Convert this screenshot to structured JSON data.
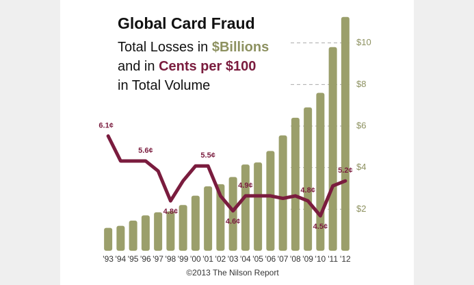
{
  "chart_data": {
    "type": "bar",
    "title": "Global Card Fraud",
    "subtitle": [
      [
        {
          "text": "Total Losses in "
        },
        {
          "text": "$Billions",
          "color": "#8d9160"
        }
      ],
      [
        {
          "text": "and in "
        },
        {
          "text": "Cents per $100",
          "color": "#7a1c3e"
        }
      ],
      [
        {
          "text": "in Total Volume"
        }
      ]
    ],
    "credit": "©2013 The Nilson Report",
    "categories": [
      "'93",
      "'94",
      "'95",
      "'96",
      "'97",
      "'98",
      "'99",
      "'00",
      "'01",
      "'02",
      "'03",
      "'04",
      "'05",
      "'06",
      "'07",
      "'08",
      "'09",
      "'10",
      "'11",
      "'12"
    ],
    "series": [
      {
        "name": "Total Losses in $Billions",
        "type": "bar",
        "color": "#9b9f6b",
        "values": [
          1.1,
          1.2,
          1.45,
          1.7,
          1.85,
          1.9,
          2.2,
          2.65,
          3.1,
          3.2,
          3.55,
          4.15,
          4.25,
          4.8,
          5.55,
          6.4,
          6.9,
          7.6,
          9.8,
          11.25
        ]
      },
      {
        "name": "Cents per $100",
        "type": "line",
        "axis": "y2",
        "color": "#7a1c3e",
        "values": [
          6.1,
          5.6,
          5.6,
          5.6,
          5.4,
          4.8,
          5.2,
          5.5,
          5.5,
          4.9,
          4.6,
          4.9,
          4.9,
          4.9,
          4.85,
          4.9,
          4.8,
          4.5,
          5.1,
          5.2
        ],
        "value_labels": [
          "6.1¢",
          null,
          null,
          "5.6¢",
          null,
          "4.8¢",
          null,
          null,
          "5.5¢",
          null,
          "4.6¢",
          "4.9¢",
          null,
          null,
          null,
          null,
          "4.8¢",
          "4.5¢",
          null,
          "5.2¢"
        ]
      }
    ],
    "ylim": [
      0,
      12
    ],
    "yticks": [
      {
        "value": 2,
        "label": "$2"
      },
      {
        "value": 4,
        "label": "$4"
      },
      {
        "value": 6,
        "label": "$6"
      },
      {
        "value": 8,
        "label": "$8"
      },
      {
        "value": 10,
        "label": "$10"
      }
    ],
    "y2lim": [
      3.8,
      8.8
    ],
    "grid": true
  }
}
